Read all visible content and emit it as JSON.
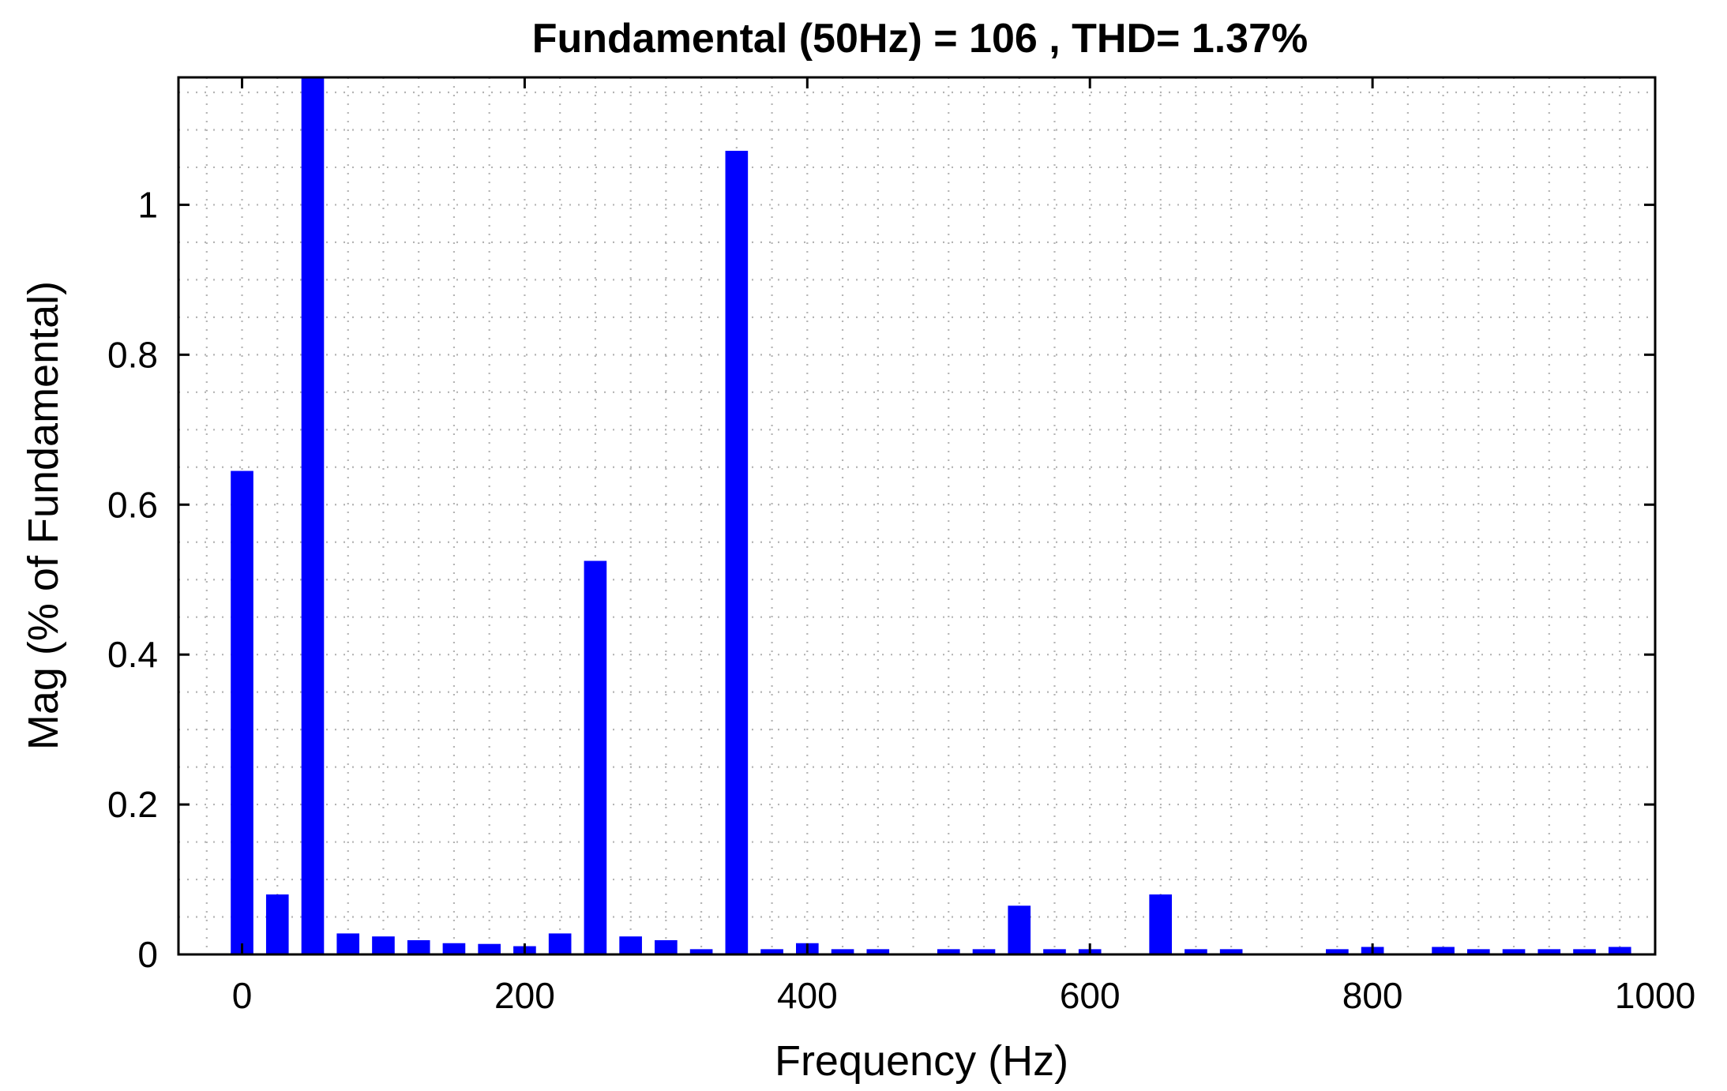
{
  "chart_data": {
    "type": "bar",
    "title": "Fundamental (50Hz) = 106 , THD= 1.37%",
    "xlabel": "Frequency (Hz)",
    "ylabel": "Mag (% of Fundamental)",
    "xlim": [
      -45,
      1000
    ],
    "ylim": [
      0,
      1.17
    ],
    "xticks": [
      0,
      200,
      400,
      600,
      800,
      1000
    ],
    "yticks": [
      0,
      0.2,
      0.4,
      0.6,
      0.8,
      1
    ],
    "ytick_labels": [
      "0",
      "0.2",
      "0.4",
      "0.6",
      "0.8",
      "1"
    ],
    "grid": true,
    "bar_color": "#0000ff",
    "bar_width_hz": 16,
    "series": [
      {
        "x": [
          0,
          25,
          50,
          75,
          100,
          125,
          150,
          175,
          200,
          225,
          250,
          275,
          300,
          325,
          350,
          375,
          400,
          425,
          450,
          475,
          500,
          525,
          550,
          575,
          600,
          625,
          650,
          675,
          700,
          725,
          750,
          775,
          800,
          825,
          850,
          875,
          900,
          925,
          950,
          975
        ],
        "values": [
          0.645,
          0.08,
          1.17,
          0.028,
          0.024,
          0.019,
          0.015,
          0.014,
          0.011,
          0.028,
          0.525,
          0.024,
          0.019,
          0.007,
          1.072,
          0.007,
          0.015,
          0.007,
          0.007,
          0.0,
          0.007,
          0.007,
          0.065,
          0.007,
          0.007,
          0.0,
          0.08,
          0.007,
          0.007,
          0.0,
          0.0,
          0.007,
          0.01,
          0.0,
          0.01,
          0.007,
          0.007,
          0.007,
          0.007,
          0.01
        ]
      }
    ]
  }
}
